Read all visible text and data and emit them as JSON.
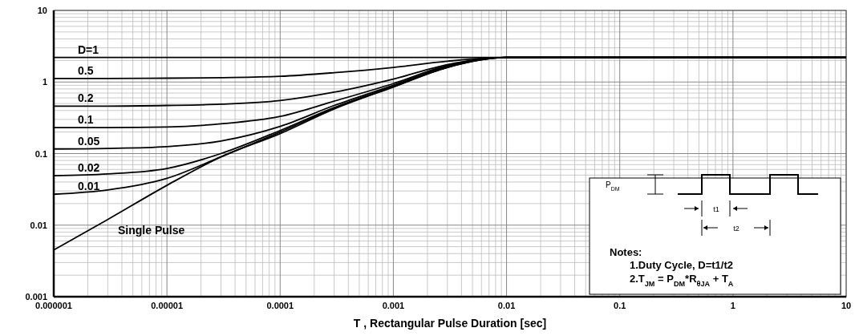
{
  "chart_data": {
    "type": "line",
    "xlabel": "T , Rectangular Pulse Duration [sec]",
    "log": "xy",
    "grid": true,
    "marker": "none",
    "line_style": "solid",
    "xlim": [
      1e-06,
      10
    ],
    "xticks": [
      {
        "value": 1e-06,
        "label": "0.000001"
      },
      {
        "value": 1e-05,
        "label": "0.00001"
      },
      {
        "value": 0.0001,
        "label": "0.0001"
      },
      {
        "value": 0.001,
        "label": "0.001"
      },
      0.01,
      0.1,
      1,
      10
    ],
    "ylim": [
      0.001,
      10
    ],
    "yticks": [
      0.001,
      0.01,
      0.1,
      1,
      10
    ],
    "x": [
      1e-06,
      3e-06,
      1e-05,
      3e-05,
      0.0001,
      0.0003,
      0.001,
      0.003,
      0.01,
      10
    ],
    "series": [
      {
        "name": "D=1",
        "color": "#000000",
        "values": [
          2.2,
          2.2,
          2.2,
          2.2,
          2.2,
          2.2,
          2.2,
          2.2,
          2.2,
          2.2
        ]
      },
      {
        "name": "0.5",
        "color": "#000000",
        "values": [
          1.12,
          1.12,
          1.13,
          1.15,
          1.2,
          1.35,
          1.6,
          1.95,
          2.2,
          2.2
        ]
      },
      {
        "name": "0.2",
        "color": "#000000",
        "values": [
          0.46,
          0.46,
          0.47,
          0.49,
          0.55,
          0.72,
          1.1,
          1.75,
          2.2,
          2.2
        ]
      },
      {
        "name": "0.1",
        "color": "#000000",
        "values": [
          0.23,
          0.23,
          0.235,
          0.26,
          0.33,
          0.54,
          0.95,
          1.7,
          2.2,
          2.2
        ]
      },
      {
        "name": "0.05",
        "color": "#000000",
        "values": [
          0.116,
          0.118,
          0.125,
          0.15,
          0.24,
          0.47,
          0.9,
          1.65,
          2.2,
          2.2
        ]
      },
      {
        "name": "0.02",
        "color": "#000000",
        "values": [
          0.049,
          0.052,
          0.062,
          0.1,
          0.21,
          0.44,
          0.87,
          1.62,
          2.2,
          2.2
        ]
      },
      {
        "name": "0.01",
        "color": "#000000",
        "values": [
          0.027,
          0.031,
          0.045,
          0.09,
          0.2,
          0.43,
          0.86,
          1.6,
          2.2,
          2.2
        ]
      },
      {
        "name": "Single Pulse",
        "color": "#000000",
        "values": [
          0.0045,
          0.012,
          0.036,
          0.09,
          0.19,
          0.42,
          0.85,
          1.6,
          2.2,
          2.2
        ]
      }
    ],
    "annotations": [
      "Notes:",
      "1.Duty  Cycle, D=t1/t2",
      "2.T$_{JM}$ = P$_{DM}$*R$_{θJA}$ + T$_{A}$",
      "P$_{DM}$",
      "t1",
      "t2"
    ]
  }
}
